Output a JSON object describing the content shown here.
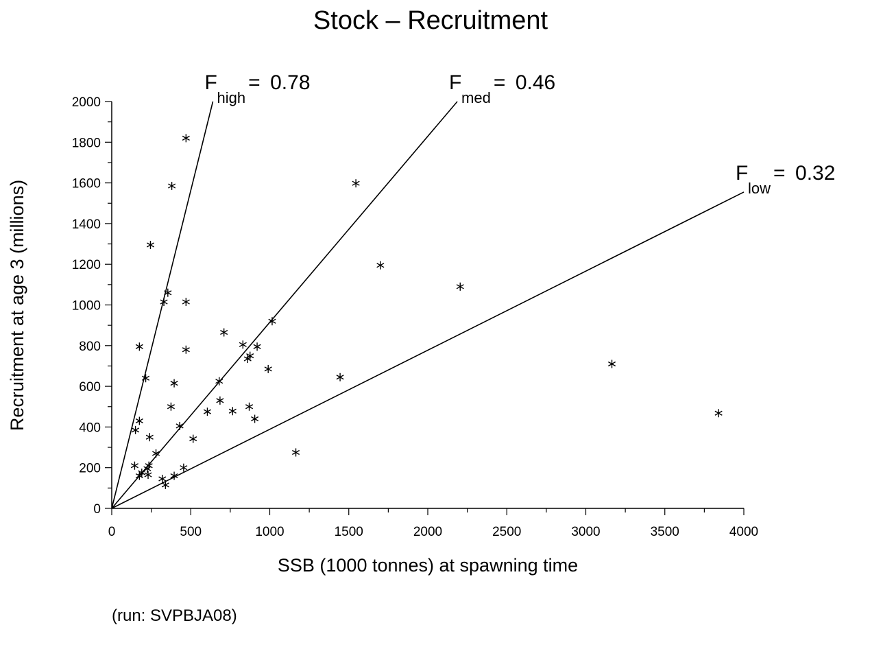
{
  "chart_data": {
    "type": "scatter",
    "title": "Stock  –  Recruitment",
    "xlabel": "SSB (1000 tonnes) at spawning time",
    "ylabel": "Recruitment at age 3 (millions)",
    "xlim": [
      0,
      4000
    ],
    "ylim": [
      0,
      2000
    ],
    "xticks": [
      0,
      500,
      1000,
      1500,
      2000,
      2500,
      3000,
      3500,
      4000
    ],
    "yticks": [
      0,
      200,
      400,
      600,
      800,
      1000,
      1200,
      1400,
      1600,
      1800,
      2000
    ],
    "grid": false,
    "marker": "asterisk",
    "points": [
      [
        470,
        1820
      ],
      [
        380,
        1585
      ],
      [
        1545,
        1598
      ],
      [
        245,
        1295
      ],
      [
        1700,
        1195
      ],
      [
        2205,
        1090
      ],
      [
        355,
        1060
      ],
      [
        330,
        1015
      ],
      [
        470,
        1015
      ],
      [
        1015,
        920
      ],
      [
        710,
        865
      ],
      [
        830,
        805
      ],
      [
        920,
        795
      ],
      [
        175,
        795
      ],
      [
        470,
        780
      ],
      [
        875,
        750
      ],
      [
        860,
        735
      ],
      [
        990,
        685
      ],
      [
        3165,
        710
      ],
      [
        1445,
        645
      ],
      [
        215,
        640
      ],
      [
        680,
        625
      ],
      [
        395,
        615
      ],
      [
        685,
        530
      ],
      [
        375,
        500
      ],
      [
        870,
        500
      ],
      [
        765,
        478
      ],
      [
        605,
        475
      ],
      [
        3840,
        468
      ],
      [
        905,
        440
      ],
      [
        175,
        430
      ],
      [
        430,
        405
      ],
      [
        150,
        385
      ],
      [
        240,
        350
      ],
      [
        515,
        342
      ],
      [
        1165,
        275
      ],
      [
        280,
        270
      ],
      [
        145,
        210
      ],
      [
        235,
        210
      ],
      [
        225,
        195
      ],
      [
        455,
        200
      ],
      [
        190,
        175
      ],
      [
        175,
        160
      ],
      [
        230,
        165
      ],
      [
        395,
        160
      ],
      [
        320,
        145
      ],
      [
        340,
        115
      ]
    ],
    "ref_lines": [
      {
        "label": "F",
        "subscript": "high",
        "value": "0.78",
        "slope": 3.125
      },
      {
        "label": "F",
        "subscript": "med",
        "value": "0.46",
        "slope": 0.9146
      },
      {
        "label": "F",
        "subscript": "low",
        "value": "0.32",
        "slope": 0.38875
      }
    ],
    "eq_sign": "=",
    "run_note": "(run: SVPBJA08)"
  }
}
